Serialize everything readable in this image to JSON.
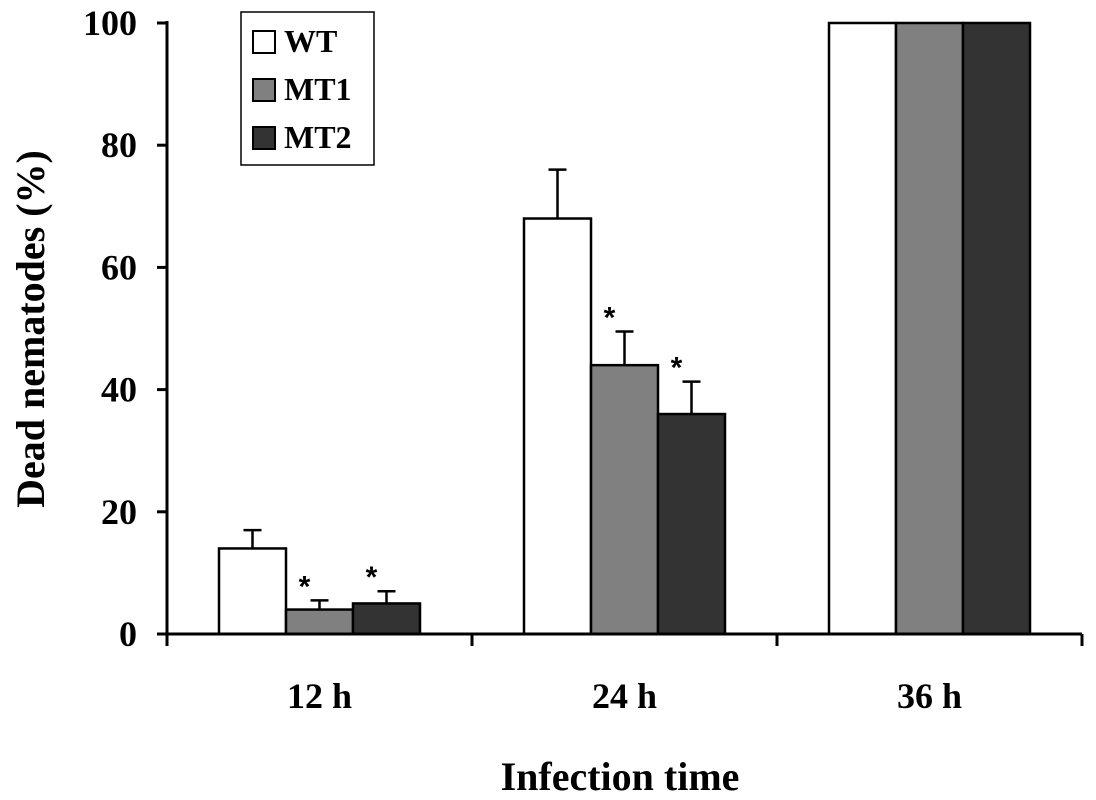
{
  "chart_data": {
    "type": "bar",
    "title": "",
    "xlabel": "Infection time",
    "ylabel": "Dead nematodes (%)",
    "categories": [
      "12 h",
      "24 h",
      "36 h"
    ],
    "ylim": [
      0,
      100
    ],
    "yticks": [
      0,
      20,
      40,
      60,
      80,
      100
    ],
    "grid": false,
    "legend_position": "top-left",
    "series": [
      {
        "name": "WT",
        "color": "#ffffff",
        "values": [
          14,
          68,
          100
        ],
        "errors": [
          3,
          8,
          0
        ],
        "significant": [
          false,
          false,
          false
        ]
      },
      {
        "name": "MT1",
        "color": "#808080",
        "values": [
          4,
          44,
          100
        ],
        "errors": [
          1.5,
          5.5,
          0
        ],
        "significant": [
          true,
          true,
          false
        ]
      },
      {
        "name": "MT2",
        "color": "#333333",
        "values": [
          5,
          36,
          100
        ],
        "errors": [
          2,
          5.3,
          0
        ],
        "significant": [
          true,
          true,
          false
        ]
      }
    ],
    "significance_marker": "*"
  }
}
